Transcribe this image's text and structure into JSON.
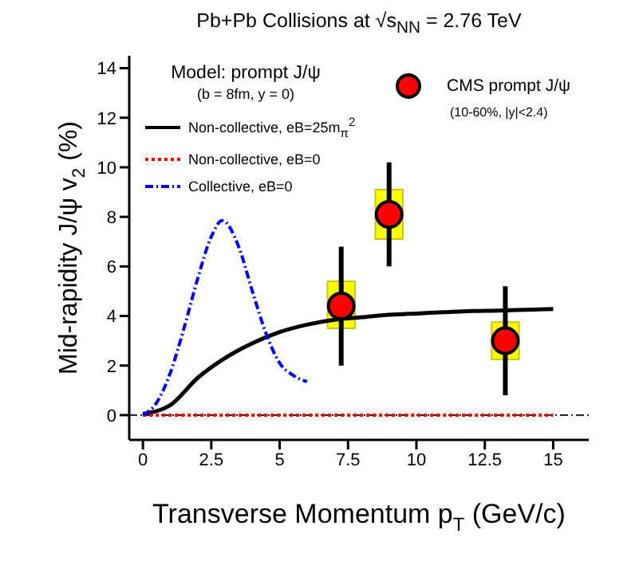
{
  "chart_data": {
    "type": "line",
    "title": "Pb+Pb Collisions at √s$_{NN}$ = 2.76 TeV",
    "xlabel": "Transverse Momentum p$_{T}$ (GeV/c)",
    "ylabel": "Mid-rapidity J/ψ v$_{2}$ (%)",
    "legend_title": "Model: prompt J/ψ",
    "annotations": [
      "(b = 8fm, y = 0)",
      "(10-60%, |y|<2.4)"
    ],
    "legend": "top",
    "xlim": [
      -0.5,
      16.3
    ],
    "ylim": [
      -1,
      14.5
    ],
    "xticks": [
      0,
      2.5,
      5,
      7.5,
      10,
      12.5,
      15
    ],
    "yticks": [
      0,
      2,
      4,
      6,
      8,
      10,
      12,
      14
    ],
    "ref_lines": [
      {
        "axis": "y",
        "value": 0,
        "color": "#000000",
        "line_style": "dashed"
      }
    ],
    "series": [
      {
        "name": "Non-collective, eB=25m$_{π}$$^{2}$",
        "color": "#000000",
        "line_style": "solid",
        "marker": "none",
        "x": [
          0,
          1,
          2,
          3,
          4,
          5,
          6,
          7,
          8,
          9,
          10,
          11,
          12,
          13,
          14,
          15
        ],
        "values": [
          0.05,
          0.4,
          1.5,
          2.3,
          2.9,
          3.35,
          3.65,
          3.85,
          3.95,
          4.05,
          4.1,
          4.15,
          4.2,
          4.22,
          4.25,
          4.28
        ]
      },
      {
        "name": "Non-collective, eB=0",
        "color": "#ff0000",
        "line_style": "dotted",
        "marker": "none",
        "x": [
          0,
          15
        ],
        "values": [
          0,
          0
        ]
      },
      {
        "name": "Collective, eB=0",
        "color": "#0000ff",
        "line_style": "dashed",
        "marker": "none",
        "x": [
          0,
          0.5,
          1,
          1.5,
          2,
          2.5,
          2.9,
          3.5,
          4,
          4.5,
          5,
          5.5,
          6
        ],
        "values": [
          0,
          0.5,
          1.7,
          3.5,
          5.5,
          7.2,
          7.85,
          6.8,
          5,
          3.3,
          2.1,
          1.6,
          1.35
        ]
      },
      {
        "type": "bar",
        "color": "#ffff00",
        "x": [
          7.25,
          9,
          13.25
        ],
        "base": [
          3.5,
          7.1,
          2.25
        ],
        "values": [
          1.9,
          2.0,
          1.5
        ]
      },
      {
        "type": "scatter",
        "name": "CMS prompt J/ψ",
        "color": "#ff0000",
        "marker": "circle",
        "x": [
          7.25,
          9,
          13.25
        ],
        "values": [
          4.4,
          8.1,
          3.0
        ],
        "errors": [
          [
            2.0,
            6.8
          ],
          [
            6.0,
            10.2
          ],
          [
            0.8,
            5.2
          ]
        ]
      }
    ]
  }
}
